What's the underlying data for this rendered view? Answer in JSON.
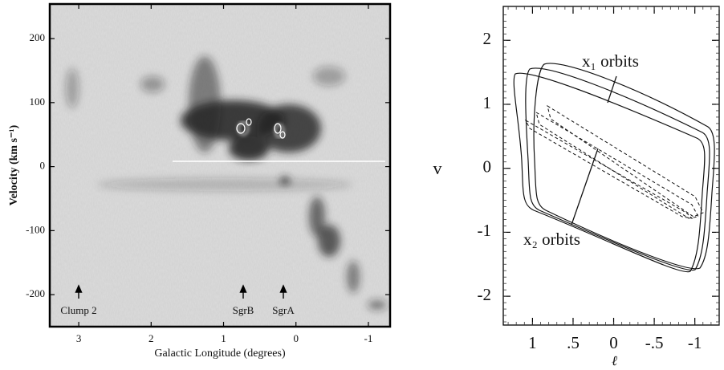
{
  "chart_data": [
    {
      "type": "image",
      "xlabel": "Galactic Longitude (degrees)",
      "ylabel": "Velocity (km s⁻¹)",
      "xlim": [
        3.4,
        -1.3
      ],
      "ylim": [
        -250,
        254
      ],
      "xticks": [
        3,
        2,
        1,
        0,
        -1
      ],
      "yticks": [
        200,
        100,
        0,
        -100,
        -200
      ],
      "annotations": [
        "Clump 2",
        "SgrB",
        "SgrA"
      ]
    },
    {
      "type": "orbits",
      "xlabel": "ℓ",
      "ylabel": "v",
      "xlim": [
        1.36,
        -1.3
      ],
      "ylim": [
        -2.45,
        2.53
      ],
      "xticks": [
        1,
        {
          "value": 0.5,
          "label": ".5"
        },
        0,
        {
          "value": -0.5,
          "label": "-.5"
        },
        -1
      ],
      "yticks": [
        2,
        1,
        0,
        -1,
        -2
      ],
      "annotations": [
        "x₁ orbits",
        "x₂ orbits"
      ]
    }
  ]
}
